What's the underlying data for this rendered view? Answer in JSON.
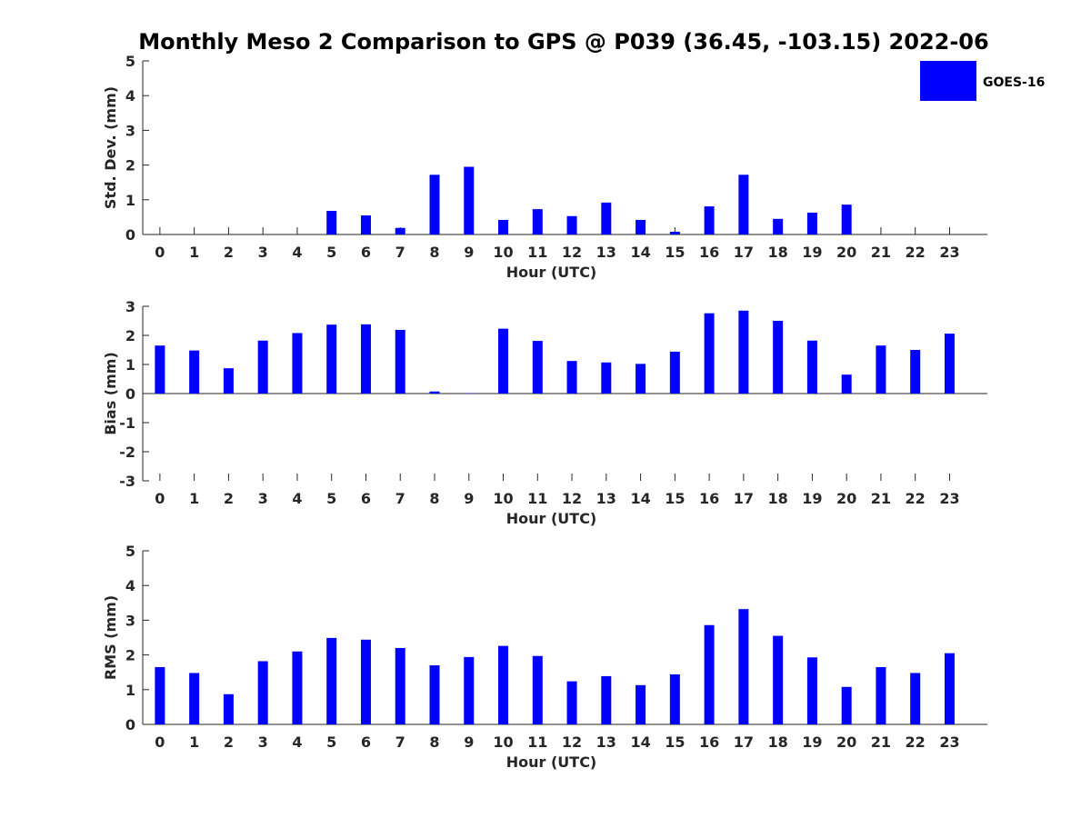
{
  "title": "Monthly Meso 2 Comparison to GPS @ P039 (36.45, -103.15) 2022-06",
  "legend": {
    "label": "GOES-16",
    "position": "top-right",
    "color": "#0000ff"
  },
  "chart_data": [
    {
      "type": "bar",
      "xlabel": "Hour (UTC)",
      "ylabel": "Std. Dev. (mm)",
      "ylim": [
        0,
        5
      ],
      "yticks": [
        "0",
        "1",
        "2",
        "3",
        "4",
        "5"
      ],
      "categories": [
        "0",
        "1",
        "2",
        "3",
        "4",
        "5",
        "6",
        "7",
        "8",
        "9",
        "10",
        "11",
        "12",
        "13",
        "14",
        "15",
        "16",
        "17",
        "18",
        "19",
        "20",
        "21",
        "22",
        "23"
      ],
      "series": [
        {
          "name": "GOES-16",
          "color": "#0000ff",
          "values": [
            0,
            0,
            0,
            0,
            0,
            0.68,
            0.55,
            0.19,
            1.72,
            1.95,
            0.42,
            0.73,
            0.53,
            0.92,
            0.42,
            0.08,
            0.81,
            1.72,
            0.45,
            0.63,
            0.86,
            0,
            0,
            0
          ]
        }
      ]
    },
    {
      "type": "bar",
      "xlabel": "Hour (UTC)",
      "ylabel": "Bias (mm)",
      "ylim": [
        -3,
        3
      ],
      "yticks": [
        "-3",
        "-2",
        "-1",
        "0",
        "1",
        "2",
        "3"
      ],
      "categories": [
        "0",
        "1",
        "2",
        "3",
        "4",
        "5",
        "6",
        "7",
        "8",
        "9",
        "10",
        "11",
        "12",
        "13",
        "14",
        "15",
        "16",
        "17",
        "18",
        "19",
        "20",
        "21",
        "22",
        "23"
      ],
      "series": [
        {
          "name": "GOES-16",
          "color": "#0000ff",
          "values": [
            1.65,
            1.48,
            0.87,
            1.82,
            2.08,
            2.37,
            2.38,
            2.19,
            0.07,
            0.01,
            2.23,
            1.81,
            1.12,
            1.07,
            1.02,
            1.44,
            2.76,
            2.85,
            2.5,
            1.82,
            0.65,
            1.65,
            1.5,
            2.06
          ]
        }
      ]
    },
    {
      "type": "bar",
      "xlabel": "Hour (UTC)",
      "ylabel": "RMS (mm)",
      "ylim": [
        0,
        5
      ],
      "yticks": [
        "0",
        "1",
        "2",
        "3",
        "4",
        "5"
      ],
      "categories": [
        "0",
        "1",
        "2",
        "3",
        "4",
        "5",
        "6",
        "7",
        "8",
        "9",
        "10",
        "11",
        "12",
        "13",
        "14",
        "15",
        "16",
        "17",
        "18",
        "19",
        "20",
        "21",
        "22",
        "23"
      ],
      "series": [
        {
          "name": "GOES-16",
          "color": "#0000ff",
          "values": [
            1.65,
            1.48,
            0.87,
            1.82,
            2.1,
            2.49,
            2.44,
            2.2,
            1.7,
            1.94,
            2.26,
            1.97,
            1.24,
            1.39,
            1.13,
            1.44,
            2.86,
            3.32,
            2.55,
            1.93,
            1.08,
            1.65,
            1.48,
            2.05
          ]
        }
      ]
    }
  ]
}
